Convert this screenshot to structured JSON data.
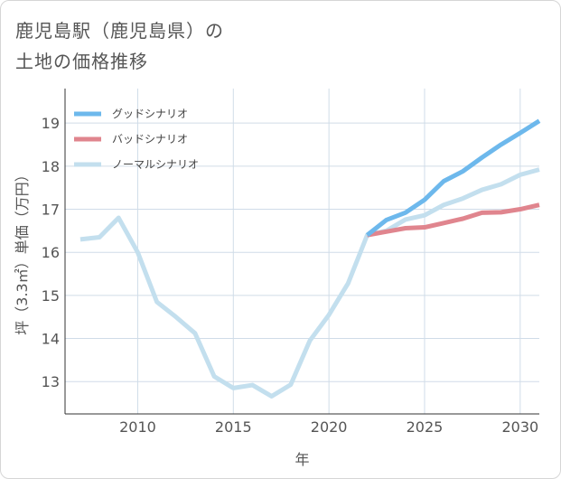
{
  "title_lines": [
    "鹿児島駅（鹿児島県）の",
    "土地の価格推移"
  ],
  "chart_data": {
    "type": "line",
    "title": "鹿児島駅（鹿児島県）の 土地の価格推移",
    "xlabel": "年",
    "ylabel": "坪（3.3㎡）単価（万円）",
    "xlim": [
      2006.2,
      2031
    ],
    "ylim": [
      12.25,
      19.8
    ],
    "x_ticks": [
      2010,
      2015,
      2020,
      2025,
      2030
    ],
    "y_ticks": [
      13,
      14,
      15,
      16,
      17,
      18,
      19
    ],
    "grid": true,
    "legend_position": "top-left",
    "series": [
      {
        "name": "グッドシナリオ",
        "color": "#6db8ec",
        "x": [
          2022,
          2023,
          2024,
          2025,
          2026,
          2027,
          2028,
          2029,
          2030,
          2031
        ],
        "y": [
          16.4,
          16.75,
          16.92,
          17.22,
          17.65,
          17.88,
          18.2,
          18.5,
          18.77,
          19.05
        ]
      },
      {
        "name": "バッドシナリオ",
        "color": "#e0858e",
        "x": [
          2022,
          2023,
          2024,
          2025,
          2026,
          2027,
          2028,
          2029,
          2030,
          2031
        ],
        "y": [
          16.4,
          16.48,
          16.56,
          16.58,
          16.68,
          16.78,
          16.92,
          16.93,
          17.0,
          17.1
        ]
      },
      {
        "name": "ノーマルシナリオ",
        "color": "#c3dfee",
        "x": [
          2007,
          2008,
          2009,
          2010,
          2011,
          2012,
          2013,
          2014,
          2015,
          2016,
          2017,
          2018,
          2019,
          2020,
          2021,
          2022,
          2023,
          2024,
          2025,
          2026,
          2027,
          2028,
          2029,
          2030,
          2031
        ],
        "y": [
          16.3,
          16.35,
          16.8,
          16.0,
          14.85,
          14.5,
          14.12,
          13.12,
          12.85,
          12.92,
          12.66,
          12.93,
          13.95,
          14.55,
          15.28,
          16.4,
          16.5,
          16.76,
          16.86,
          17.1,
          17.25,
          17.45,
          17.58,
          17.8,
          17.92
        ]
      }
    ]
  }
}
